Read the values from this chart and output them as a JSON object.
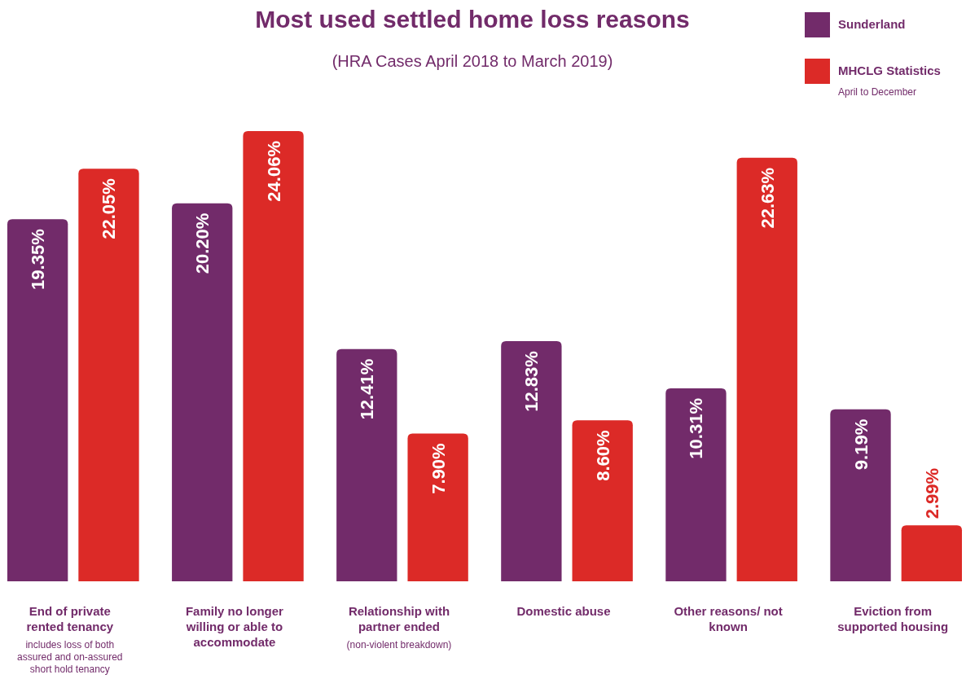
{
  "chart_data": {
    "type": "bar",
    "title": "Most used settled home loss reasons",
    "subtitle": "(HRA Cases April 2018 to March 2019)",
    "categories": [
      "End of private rented tenancy",
      "Family no longer willing or able to accommodate",
      "Relationship with partner ended",
      "Domestic abuse",
      "Other reasons/ not known",
      "Eviction from supported housing"
    ],
    "series": [
      {
        "name": "Sunderland",
        "color": "#722b6a",
        "values": [
          19.35,
          20.2,
          12.41,
          12.83,
          10.31,
          9.19
        ],
        "value_labels": [
          "19.35%",
          "20.20%",
          "12.41%",
          "12.83%",
          "10.31%",
          "9.19%"
        ]
      },
      {
        "name": "MHCLG Statistics",
        "color": "#dc2a27",
        "values": [
          22.05,
          24.06,
          7.9,
          8.6,
          22.63,
          2.99
        ],
        "value_labels": [
          "22.05%",
          "24.06%",
          "7.90%",
          "8.60%",
          "22.63%",
          "2.99%"
        ]
      }
    ],
    "legend": "top right",
    "annotations": [
      "April to December",
      "includes loss of both assured and on-assured short hold tenancy",
      "(non-violent breakdown)"
    ]
  }
}
